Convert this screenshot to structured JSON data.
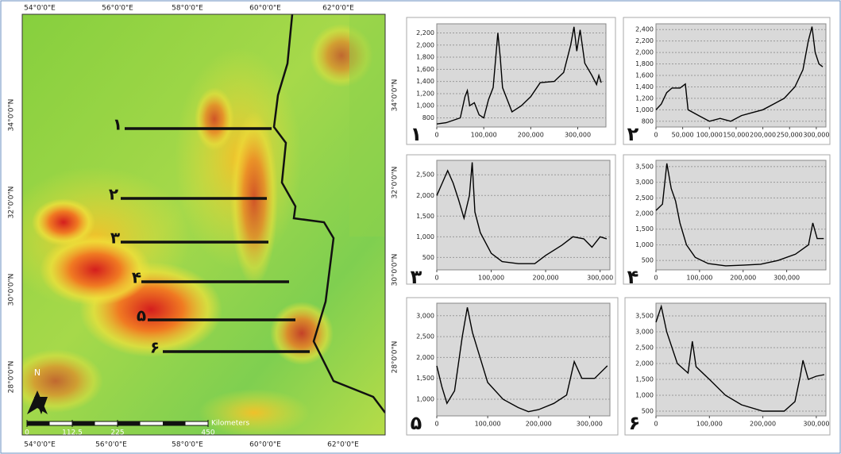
{
  "map": {
    "top_labels": [
      "54°0'0\"E",
      "56°0'0\"E",
      "58°0'0\"E",
      "60°0'0\"E",
      "62°0'0\"E"
    ],
    "bottom_labels": [
      "54°0'0\"E",
      "56°0'0\"E",
      "58°0'0\"E",
      "60°0'0\"E",
      "62°0'0\"E"
    ],
    "left_labels": [
      "34°0'0\"N",
      "32°0'0\"N",
      "30°0'0\"N",
      "28°0'0\"N"
    ],
    "right_labels": [
      "34°0'0\"N",
      "32°0'0\"N",
      "30°0'0\"N",
      "28°0'0\"N"
    ],
    "profiles": [
      "۱",
      "۲",
      "۳",
      "۴",
      "۵",
      "۶"
    ],
    "north": "N",
    "scale": {
      "unit": "Kilometers",
      "ticks": [
        0,
        112.5,
        225,
        450
      ]
    }
  },
  "chart_data": [
    {
      "type": "line",
      "label": "۱",
      "color": "#000000",
      "grid": true,
      "x": [
        0,
        20000,
        50000,
        60000,
        65000,
        70000,
        80000,
        90000,
        100000,
        110000,
        120000,
        130000,
        135000,
        140000,
        160000,
        180000,
        200000,
        220000,
        250000,
        270000,
        285000,
        292000,
        298000,
        305000,
        315000,
        330000,
        340000,
        345000,
        350000
      ],
      "values": [
        700,
        720,
        800,
        1150,
        1250,
        1000,
        1050,
        850,
        800,
        1100,
        1300,
        2200,
        1800,
        1300,
        900,
        1000,
        1150,
        1380,
        1400,
        1550,
        2000,
        2300,
        1900,
        2250,
        1700,
        1500,
        1350,
        1500,
        1380
      ],
      "xlim": [
        0,
        360000
      ],
      "ylim": [
        650,
        2350
      ],
      "xticks": [
        0,
        {
          "value": 100000,
          "label": "100,000"
        },
        {
          "value": 200000,
          "label": "200,000"
        },
        {
          "value": 300000,
          "label": "300,000"
        }
      ],
      "yticks": [
        800,
        {
          "value": 1000,
          "label": "1,000"
        },
        {
          "value": 1200,
          "label": "1,200"
        },
        {
          "value": 1400,
          "label": "1,400"
        },
        {
          "value": 1600,
          "label": "1,600"
        },
        {
          "value": 1800,
          "label": "1,800"
        },
        {
          "value": 2000,
          "label": "2,000"
        },
        {
          "value": 2200,
          "label": "2,200"
        }
      ]
    },
    {
      "type": "line",
      "label": "۲",
      "color": "#000000",
      "grid": true,
      "x": [
        0,
        10000,
        20000,
        30000,
        45000,
        55000,
        60000,
        80000,
        100000,
        120000,
        140000,
        160000,
        180000,
        200000,
        220000,
        240000,
        260000,
        275000,
        285000,
        292000,
        298000,
        305000,
        312000
      ],
      "values": [
        1000,
        1100,
        1300,
        1380,
        1380,
        1450,
        1000,
        900,
        800,
        850,
        800,
        900,
        950,
        1000,
        1100,
        1200,
        1400,
        1700,
        2200,
        2450,
        2000,
        1800,
        1750
      ],
      "xlim": [
        0,
        318000
      ],
      "ylim": [
        700,
        2500
      ],
      "xticks": [
        0,
        {
          "value": 50000,
          "label": "50,000"
        },
        {
          "value": 100000,
          "label": "100,000"
        },
        {
          "value": 150000,
          "label": "150,000"
        },
        {
          "value": 200000,
          "label": "200,000"
        },
        {
          "value": 250000,
          "label": "250,000"
        },
        {
          "value": 300000,
          "label": "300,000"
        }
      ],
      "yticks": [
        800,
        {
          "value": 1000,
          "label": "1,000"
        },
        {
          "value": 1200,
          "label": "1,200"
        },
        {
          "value": 1400,
          "label": "1,400"
        },
        {
          "value": 1600,
          "label": "1,600"
        },
        {
          "value": 1800,
          "label": "1,800"
        },
        {
          "value": 2000,
          "label": "2,000"
        },
        {
          "value": 2200,
          "label": "2,200"
        },
        {
          "value": 2400,
          "label": "2,400"
        }
      ]
    },
    {
      "type": "line",
      "label": "۳",
      "color": "#000000",
      "grid": true,
      "x": [
        0,
        10000,
        20000,
        30000,
        40000,
        50000,
        60000,
        65000,
        70000,
        80000,
        100000,
        120000,
        150000,
        180000,
        200000,
        230000,
        250000,
        270000,
        285000,
        300000,
        312000
      ],
      "values": [
        2000,
        2300,
        2600,
        2300,
        1900,
        1450,
        2000,
        2800,
        1600,
        1100,
        600,
        400,
        350,
        350,
        550,
        800,
        1000,
        950,
        750,
        1000,
        950
      ],
      "xlim": [
        0,
        318000
      ],
      "ylim": [
        200,
        2850
      ],
      "xticks": [
        0,
        {
          "value": 100000,
          "label": "100,000"
        },
        {
          "value": 200000,
          "label": "200,000"
        },
        {
          "value": 300000,
          "label": "300,000"
        }
      ],
      "yticks": [
        500,
        {
          "value": 1000,
          "label": "1,000"
        },
        {
          "value": 1500,
          "label": "1,500"
        },
        {
          "value": 2000,
          "label": "2,000"
        },
        {
          "value": 2500,
          "label": "2,500"
        }
      ]
    },
    {
      "type": "line",
      "label": "۴",
      "color": "#000000",
      "grid": true,
      "x": [
        0,
        15000,
        25000,
        35000,
        45000,
        55000,
        70000,
        90000,
        120000,
        160000,
        200000,
        240000,
        280000,
        320000,
        350000,
        360000,
        370000,
        385000
      ],
      "values": [
        2100,
        2300,
        3600,
        2800,
        2400,
        1700,
        1000,
        600,
        400,
        330,
        350,
        380,
        500,
        700,
        1000,
        1700,
        1200,
        1200
      ],
      "xlim": [
        0,
        390000
      ],
      "ylim": [
        200,
        3700
      ],
      "xticks": [
        0,
        {
          "value": 100000,
          "label": "100,000"
        },
        {
          "value": 200000,
          "label": "200,000"
        },
        {
          "value": 300000,
          "label": "300,000"
        }
      ],
      "yticks": [
        500,
        {
          "value": 1000,
          "label": "1,000"
        },
        {
          "value": 1500,
          "label": "1,500"
        },
        {
          "value": 2000,
          "label": "2,000"
        },
        {
          "value": 2500,
          "label": "2,500"
        },
        {
          "value": 3000,
          "label": "3,000"
        },
        {
          "value": 3500,
          "label": "3,500"
        }
      ]
    },
    {
      "type": "line",
      "label": "۵",
      "color": "#000000",
      "grid": true,
      "x": [
        0,
        10000,
        20000,
        35000,
        50000,
        60000,
        70000,
        80000,
        100000,
        130000,
        160000,
        180000,
        200000,
        230000,
        255000,
        270000,
        285000,
        310000,
        335000
      ],
      "values": [
        1800,
        1300,
        900,
        1200,
        2500,
        3200,
        2600,
        2200,
        1400,
        1000,
        800,
        700,
        750,
        900,
        1100,
        1900,
        1500,
        1500,
        1800
      ],
      "xlim": [
        0,
        340000
      ],
      "ylim": [
        600,
        3300
      ],
      "xticks": [
        0,
        {
          "value": 100000,
          "label": "100,000"
        },
        {
          "value": 200000,
          "label": "200,000"
        },
        {
          "value": 300000,
          "label": "300,000"
        }
      ],
      "yticks": [
        {
          "value": 1000,
          "label": "1,000"
        },
        {
          "value": 1500,
          "label": "1,500"
        },
        {
          "value": 2000,
          "label": "2,000"
        },
        {
          "value": 2500,
          "label": "2,500"
        },
        {
          "value": 3000,
          "label": "3,000"
        }
      ]
    },
    {
      "type": "line",
      "label": "۶",
      "color": "#000000",
      "grid": true,
      "x": [
        0,
        10000,
        20000,
        40000,
        60000,
        68000,
        75000,
        100000,
        130000,
        160000,
        200000,
        240000,
        260000,
        270000,
        275000,
        285000,
        300000,
        315000
      ],
      "values": [
        3300,
        3800,
        3000,
        2000,
        1700,
        2700,
        1900,
        1500,
        1000,
        700,
        500,
        500,
        800,
        1600,
        2100,
        1500,
        1600,
        1650
      ],
      "xlim": [
        0,
        318000
      ],
      "ylim": [
        350,
        3900
      ],
      "xticks": [
        0,
        {
          "value": 100000,
          "label": "100,000"
        },
        {
          "value": 200000,
          "label": "200,000"
        },
        {
          "value": 300000,
          "label": "300,000"
        }
      ],
      "yticks": [
        500,
        {
          "value": 1000,
          "label": "1,000"
        },
        {
          "value": 1500,
          "label": "1,500"
        },
        {
          "value": 2000,
          "label": "2,000"
        },
        {
          "value": 2500,
          "label": "2,500"
        },
        {
          "value": 3000,
          "label": "3,000"
        },
        {
          "value": 3500,
          "label": "3,500"
        }
      ]
    }
  ]
}
